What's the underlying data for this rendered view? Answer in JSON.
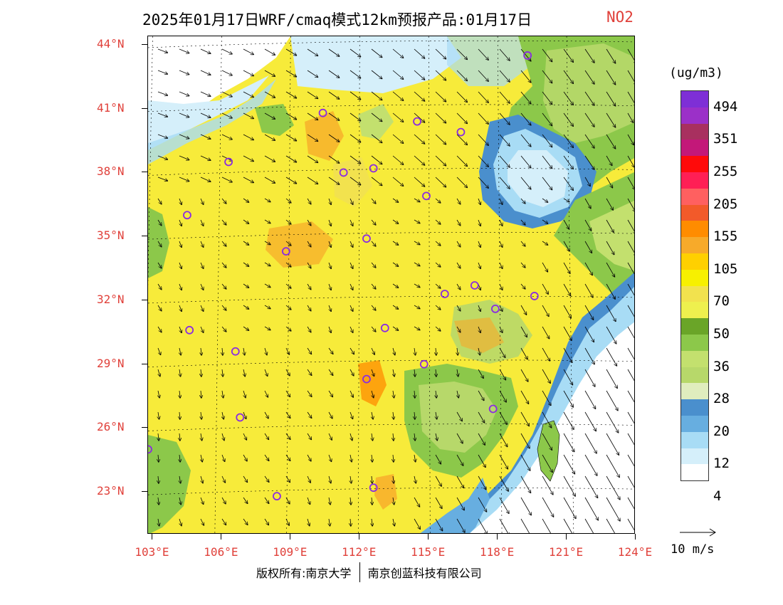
{
  "title": {
    "main": "2025年01月17日WRF/cmaq模式12km预报产品:01月17日",
    "pollutant": "NO2",
    "pollutant_color": "#e0403a"
  },
  "axes": {
    "lat_labels": [
      "44°N",
      "41°N",
      "38°N",
      "35°N",
      "32°N",
      "29°N",
      "26°N",
      "23°N"
    ],
    "lon_labels": [
      "103°E",
      "106°E",
      "109°E",
      "112°E",
      "115°E",
      "118°E",
      "121°E",
      "124°E"
    ],
    "lat_values": [
      44,
      41,
      38,
      35,
      32,
      29,
      26,
      23
    ],
    "lon_values": [
      103,
      106,
      109,
      112,
      115,
      118,
      121,
      124
    ],
    "label_color": "#e0403a"
  },
  "legend": {
    "unit": "(ug/m3)",
    "labels": [
      "494",
      "351",
      "255",
      "205",
      "155",
      "105",
      "70",
      "50",
      "36",
      "28",
      "20",
      "12",
      "4"
    ],
    "colors": [
      "#7e2fd6",
      "#9b30c8",
      "#a8305f",
      "#c31879",
      "#ff0a0a",
      "#ff1f55",
      "#ff6060",
      "#f25a2a",
      "#ff8c00",
      "#f7aa2a",
      "#ffd000",
      "#f7f000",
      "#f2e24e",
      "#eef04e",
      "#6aa528",
      "#8cc84a",
      "#c3e06e",
      "#b7d86a",
      "#e0edbe",
      "#4a8fcd",
      "#67aee0",
      "#a8dcf5",
      "#d5effa",
      "#ffffff"
    ]
  },
  "wind_scale": {
    "label": "10 m/s"
  },
  "stations": [
    {
      "lon": 119.3,
      "lat": 43.5
    },
    {
      "lon": 110.4,
      "lat": 40.8
    },
    {
      "lon": 114.5,
      "lat": 40.4
    },
    {
      "lon": 116.4,
      "lat": 39.9
    },
    {
      "lon": 106.3,
      "lat": 38.5
    },
    {
      "lon": 111.3,
      "lat": 38.0
    },
    {
      "lon": 112.6,
      "lat": 38.2
    },
    {
      "lon": 114.9,
      "lat": 36.9
    },
    {
      "lon": 104.5,
      "lat": 36.0
    },
    {
      "lon": 112.3,
      "lat": 34.9
    },
    {
      "lon": 108.8,
      "lat": 34.3
    },
    {
      "lon": 117.0,
      "lat": 32.7
    },
    {
      "lon": 115.7,
      "lat": 32.3
    },
    {
      "lon": 119.6,
      "lat": 32.2
    },
    {
      "lon": 117.9,
      "lat": 31.6
    },
    {
      "lon": 104.6,
      "lat": 30.6
    },
    {
      "lon": 113.1,
      "lat": 30.7
    },
    {
      "lon": 106.6,
      "lat": 29.6
    },
    {
      "lon": 114.8,
      "lat": 29.0
    },
    {
      "lon": 112.3,
      "lat": 28.3
    },
    {
      "lon": 117.8,
      "lat": 26.9
    },
    {
      "lon": 106.8,
      "lat": 26.5
    },
    {
      "lon": 102.8,
      "lat": 25.0
    },
    {
      "lon": 108.4,
      "lat": 22.8
    },
    {
      "lon": 112.6,
      "lat": 23.2
    }
  ],
  "footer": {
    "left": "版权所有:南京大学",
    "right": "南京创蓝科技有限公司"
  }
}
